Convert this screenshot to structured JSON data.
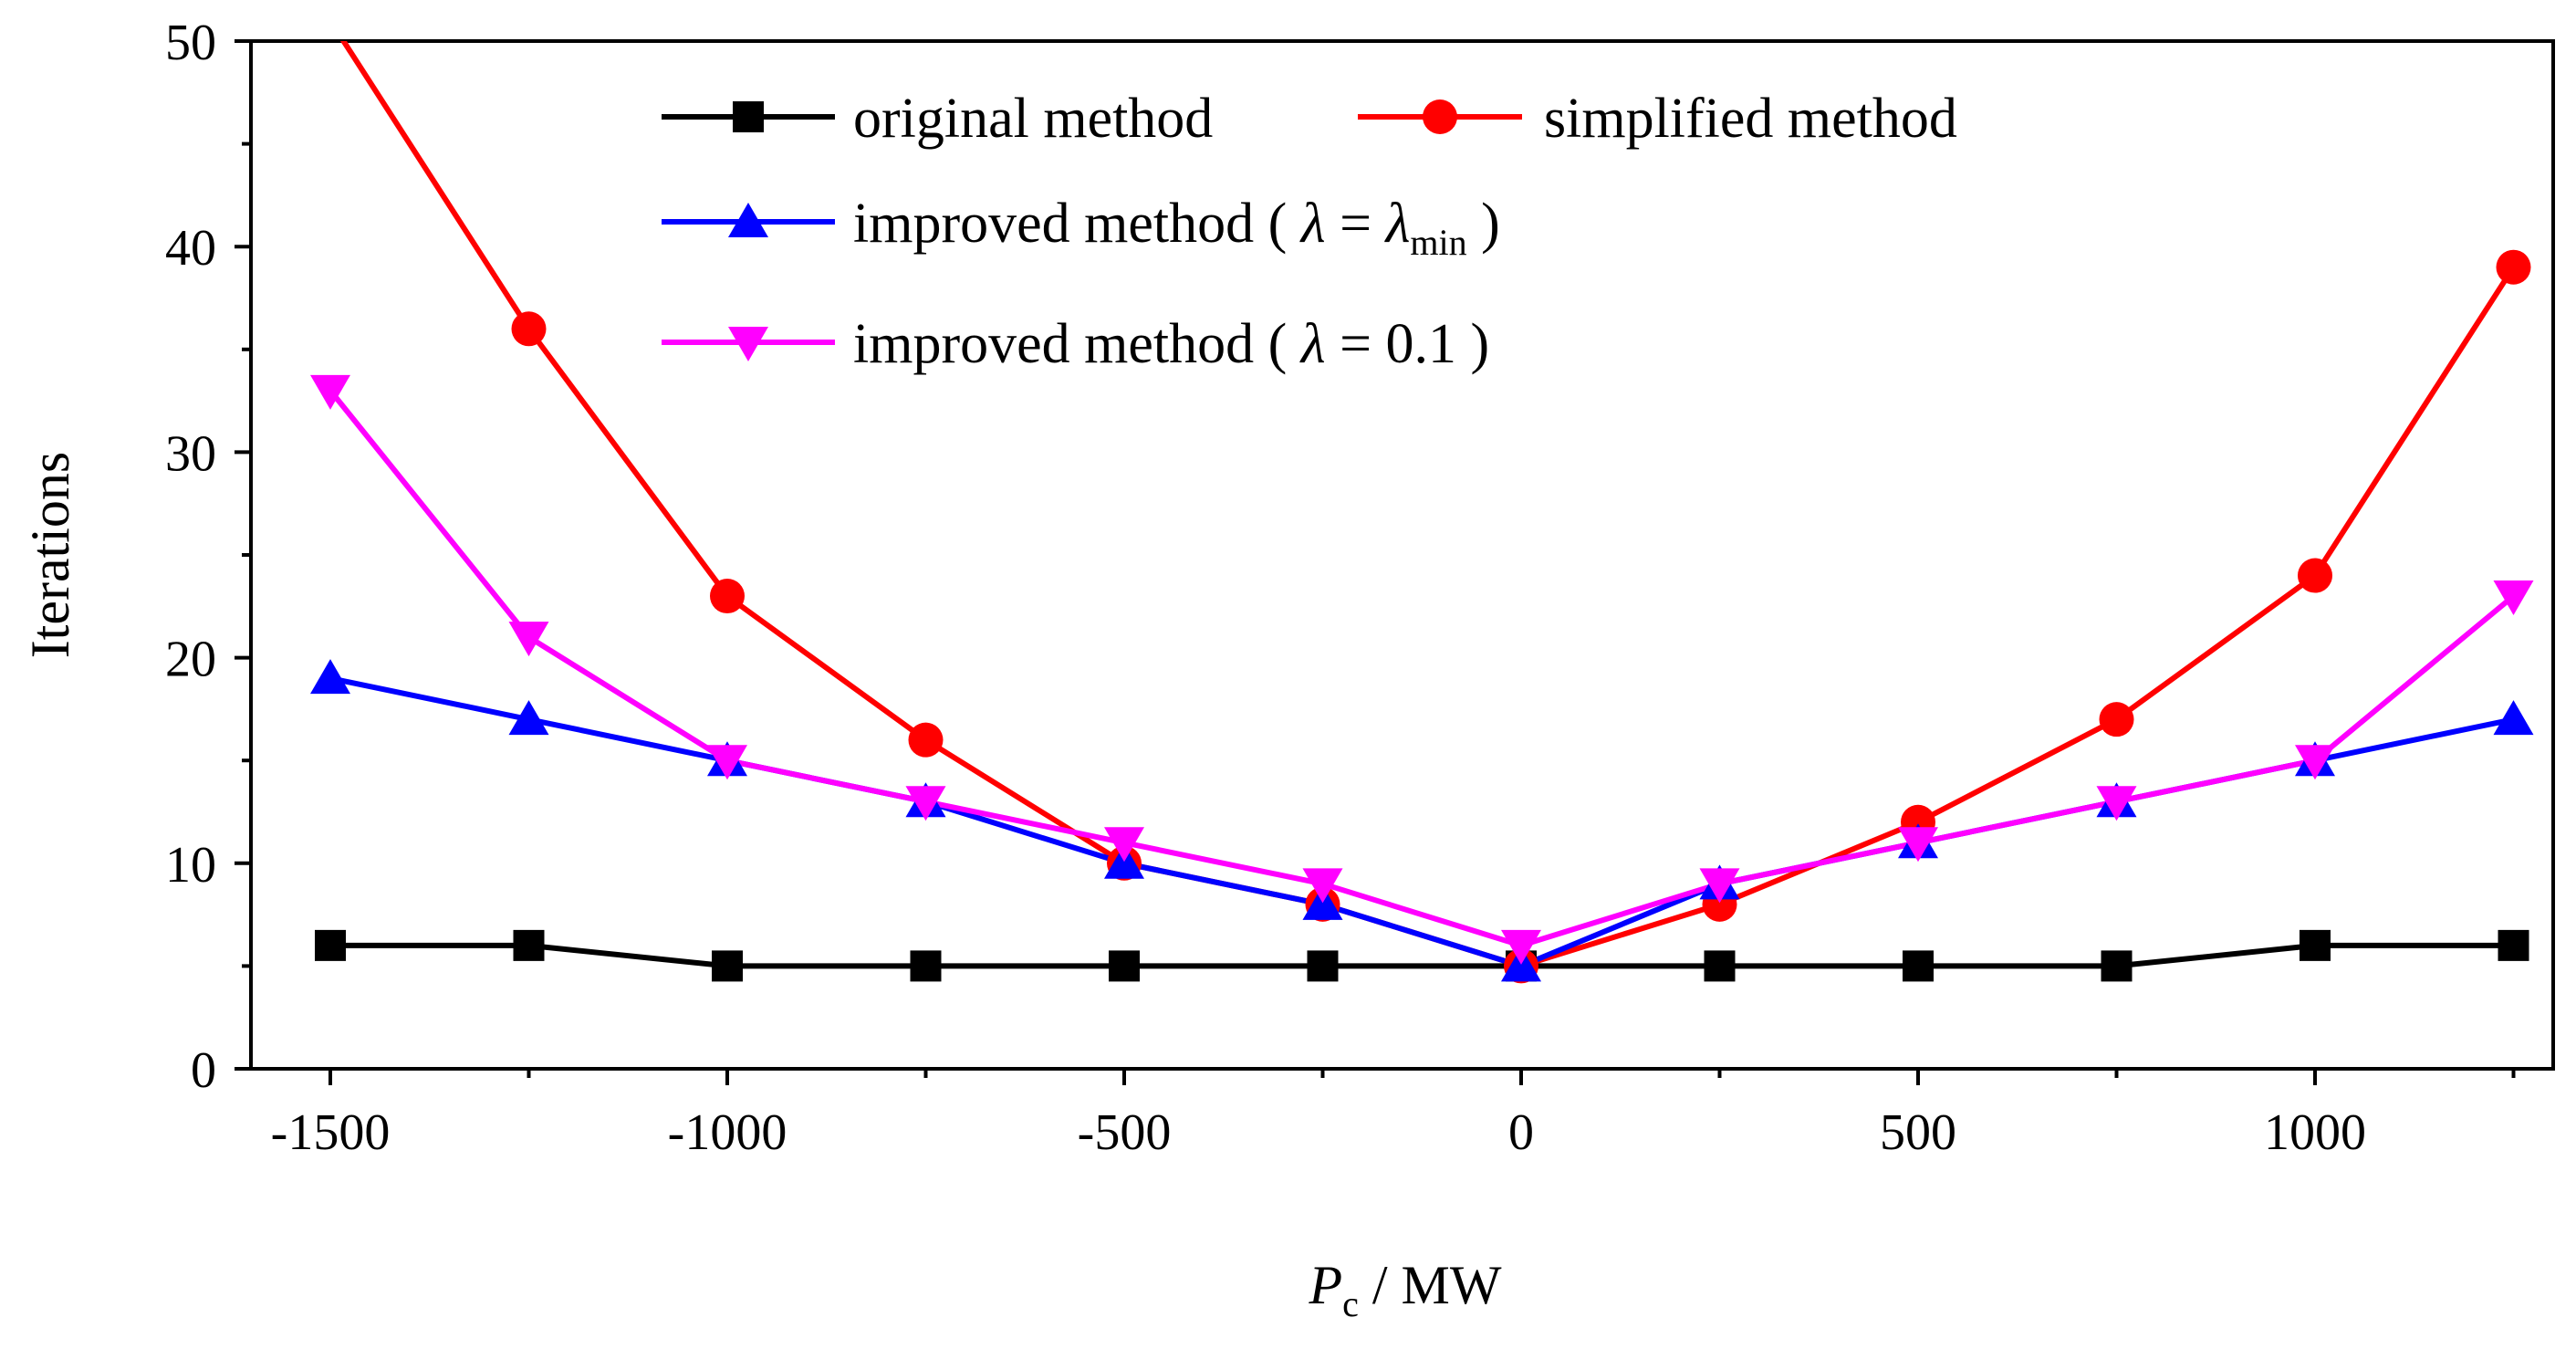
{
  "chart_data": {
    "type": "line",
    "xlabel_main": "P",
    "xlabel_sub": "c",
    "xlabel_rest": " / MW",
    "ylabel": "Iterations",
    "xlim": [
      -1600,
      1300
    ],
    "ylim": [
      0,
      50
    ],
    "x_ticks": [
      -1500,
      -1000,
      -500,
      0,
      500,
      1000
    ],
    "x_tick_labels": [
      "-1500",
      "-1000",
      "-500",
      "0",
      "500",
      "1000"
    ],
    "y_ticks": [
      0,
      10,
      20,
      30,
      40,
      50
    ],
    "y_tick_labels": [
      "0",
      "10",
      "20",
      "30",
      "40",
      "50"
    ],
    "x": [
      -1500,
      -1250,
      -1000,
      -750,
      -500,
      -250,
      0,
      250,
      500,
      750,
      1000,
      1250
    ],
    "series": [
      {
        "key": "original",
        "color": "#000000",
        "marker": "square",
        "values": [
          6,
          6,
          5,
          5,
          5,
          5,
          5,
          5,
          5,
          5,
          6,
          6
        ]
      },
      {
        "key": "simplified",
        "color": "#ff0000",
        "marker": "circle",
        "values": [
          51,
          36,
          23,
          16,
          10,
          8,
          5,
          8,
          12,
          17,
          24,
          39
        ]
      },
      {
        "key": "improved_min",
        "color": "#0000ff",
        "marker": "triangle-up",
        "values": [
          19,
          17,
          15,
          13,
          10,
          8,
          5,
          9,
          11,
          13,
          15,
          17
        ]
      },
      {
        "key": "improved_01",
        "color": "#ff00ff",
        "marker": "triangle-down",
        "values": [
          33,
          21,
          15,
          13,
          11,
          9,
          6,
          9,
          11,
          13,
          15,
          23
        ]
      }
    ],
    "legend": {
      "placement": "top-center",
      "original": "original method",
      "simplified": "simplified method",
      "improved_min_prefix": "improved method ( ",
      "improved_min_lambda": "λ",
      "improved_min_eq": " = ",
      "improved_min_lambda2": "λ",
      "improved_min_sub": "min",
      "improved_min_suffix": " )",
      "improved_01_prefix": "improved method ( ",
      "improved_01_lambda": "λ",
      "improved_01_rest": " = 0.1 )"
    }
  }
}
